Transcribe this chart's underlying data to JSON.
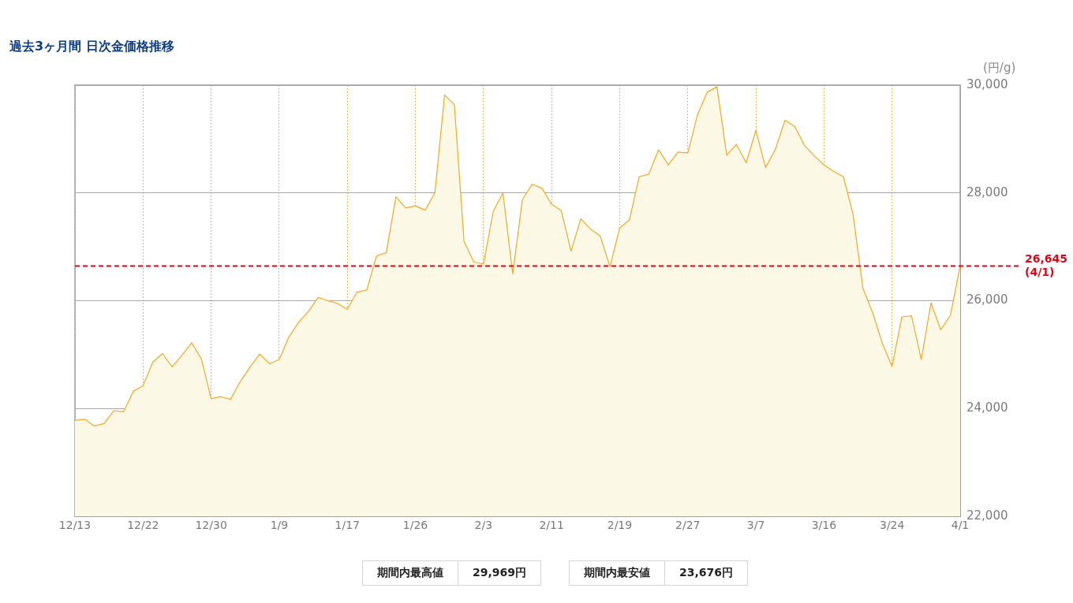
{
  "chart_data": {
    "type": "area",
    "title": "過去3ヶ月間 日次金価格推移",
    "ylabel": "(円/g)",
    "categories": [
      "12/13",
      null,
      null,
      null,
      null,
      null,
      null,
      "12/22",
      null,
      null,
      null,
      null,
      null,
      null,
      "12/30",
      null,
      null,
      null,
      null,
      null,
      null,
      "1/9",
      null,
      null,
      null,
      null,
      null,
      null,
      "1/17",
      null,
      null,
      null,
      null,
      null,
      null,
      "1/26",
      null,
      null,
      null,
      null,
      null,
      null,
      "2/3",
      null,
      null,
      null,
      null,
      null,
      null,
      "2/11",
      null,
      null,
      null,
      null,
      null,
      null,
      "2/19",
      null,
      null,
      null,
      null,
      null,
      null,
      "2/27",
      null,
      null,
      null,
      null,
      null,
      null,
      "3/7",
      null,
      null,
      null,
      null,
      null,
      null,
      "3/16",
      null,
      null,
      null,
      null,
      null,
      null,
      "3/24",
      null,
      null,
      null,
      null,
      null,
      null,
      "4/1"
    ],
    "series": [
      {
        "color": "#f5a623",
        "values": [
          23780,
          23800,
          23676,
          23720,
          23960,
          23940,
          24320,
          24420,
          24860,
          25020,
          24770,
          24990,
          25220,
          24920,
          24180,
          24220,
          24170,
          24500,
          24770,
          25010,
          24830,
          24910,
          25330,
          25600,
          25800,
          26060,
          26000,
          25950,
          25840,
          26160,
          26200,
          26830,
          26890,
          27930,
          27720,
          27760,
          27680,
          28000,
          29820,
          29640,
          27100,
          26720,
          26680,
          27660,
          28000,
          26500,
          27880,
          28160,
          28090,
          27790,
          27670,
          26920,
          27520,
          27330,
          27200,
          26630,
          27350,
          27500,
          28300,
          28350,
          28800,
          28520,
          28760,
          28740,
          29450,
          29870,
          29969,
          28700,
          28900,
          28560,
          29160,
          28470,
          28810,
          29350,
          29230,
          28880,
          28690,
          28520,
          28400,
          28300,
          27590,
          26230,
          25780,
          25210,
          24780,
          25700,
          25720,
          24910,
          25960,
          25460,
          25730,
          26645
        ]
      }
    ],
    "ylim": [
      22000,
      30000
    ],
    "yticks": [
      {
        "value": 22000,
        "label": "22,000"
      },
      {
        "value": 24000,
        "label": "24,000"
      },
      {
        "value": 26000,
        "label": "26,000"
      },
      {
        "value": 28000,
        "label": "28,000"
      },
      {
        "value": 30000,
        "label": "30,000"
      }
    ],
    "ref_lines": [
      {
        "axis": "y",
        "value": 26645,
        "label": "26,645\n(4/1)",
        "color": "#e60012",
        "line_style": "dashed"
      }
    ],
    "annotations": [
      "期間内最高値",
      "29,969円",
      "期間内最安値",
      "23,676円"
    ],
    "grid": true,
    "legend": false,
    "marker": "none"
  }
}
